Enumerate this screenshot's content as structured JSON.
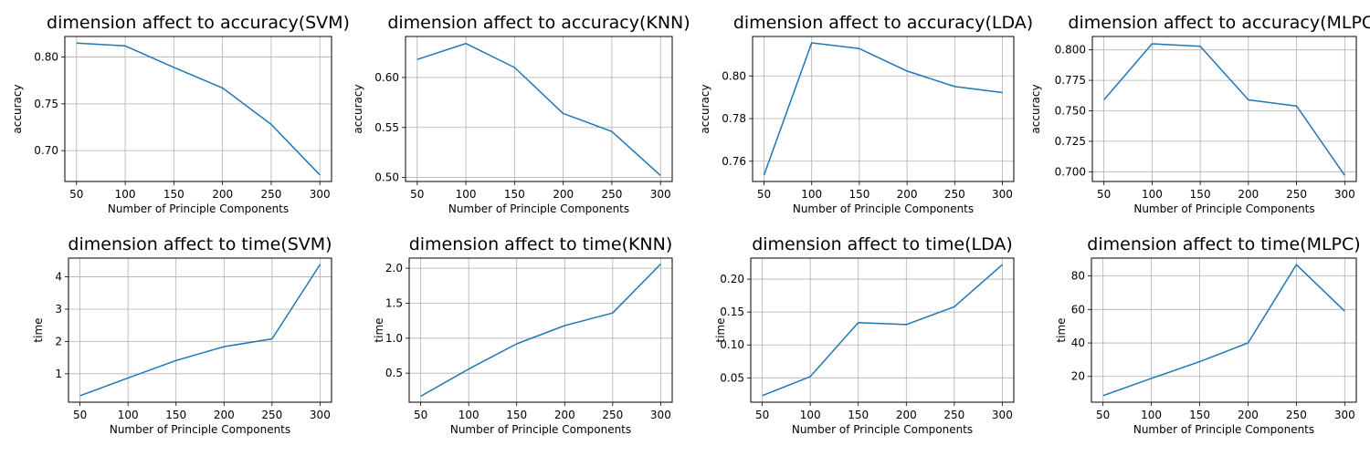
{
  "chart_data": [
    {
      "type": "line",
      "title": "dimension affect to accuracy(SVM)",
      "xlabel": "Number of Principle Components",
      "ylabel": "accuracy",
      "x": [
        50,
        100,
        150,
        200,
        250,
        300
      ],
      "series": [
        {
          "values": [
            0.815,
            0.812,
            0.789,
            0.767,
            0.728,
            0.674
          ]
        }
      ],
      "xlim": [
        38,
        312
      ],
      "ylim": [
        0.667,
        0.822
      ],
      "xticks": [
        50,
        100,
        150,
        200,
        250,
        300
      ],
      "yticks": [
        0.7,
        0.75,
        0.8
      ],
      "ytick_labels": [
        "0.70",
        "0.75",
        "0.80"
      ],
      "grid": true
    },
    {
      "type": "line",
      "title": "dimension affect to accuracy(KNN)",
      "xlabel": "Number of Principle Components",
      "ylabel": "accuracy",
      "x": [
        50,
        100,
        150,
        200,
        250,
        300
      ],
      "series": [
        {
          "values": [
            0.618,
            0.634,
            0.61,
            0.564,
            0.546,
            0.502
          ]
        }
      ],
      "xlim": [
        38,
        312
      ],
      "ylim": [
        0.496,
        0.641
      ],
      "xticks": [
        50,
        100,
        150,
        200,
        250,
        300
      ],
      "yticks": [
        0.5,
        0.55,
        0.6
      ],
      "ytick_labels": [
        "0.50",
        "0.55",
        "0.60"
      ],
      "grid": true
    },
    {
      "type": "line",
      "title": "dimension affect to accuracy(LDA)",
      "xlabel": "Number of Principle Components",
      "ylabel": "accuracy",
      "x": [
        50,
        100,
        150,
        200,
        250,
        300
      ],
      "series": [
        {
          "values": [
            0.7535,
            0.8155,
            0.8128,
            0.8023,
            0.795,
            0.7922
          ]
        }
      ],
      "xlim": [
        38,
        312
      ],
      "ylim": [
        0.7505,
        0.8185
      ],
      "xticks": [
        50,
        100,
        150,
        200,
        250,
        300
      ],
      "yticks": [
        0.76,
        0.78,
        0.8
      ],
      "ytick_labels": [
        "0.76",
        "0.78",
        "0.80"
      ],
      "grid": true
    },
    {
      "type": "line",
      "title": "dimension affect to accuracy(MLPC)",
      "xlabel": "Number of Principle Components",
      "ylabel": "accuracy",
      "x": [
        50,
        100,
        150,
        200,
        250,
        300
      ],
      "series": [
        {
          "values": [
            0.759,
            0.805,
            0.803,
            0.759,
            0.754,
            0.697
          ]
        }
      ],
      "xlim": [
        38,
        312
      ],
      "ylim": [
        0.692,
        0.811
      ],
      "xticks": [
        50,
        100,
        150,
        200,
        250,
        300
      ],
      "yticks": [
        0.7,
        0.725,
        0.75,
        0.775,
        0.8
      ],
      "ytick_labels": [
        "0.700",
        "0.725",
        "0.750",
        "0.775",
        "0.800"
      ],
      "grid": true
    },
    {
      "type": "line",
      "title": "dimension affect to time(SVM)",
      "xlabel": "Number of Principle Components",
      "ylabel": "time",
      "x": [
        50,
        100,
        150,
        200,
        250,
        300
      ],
      "series": [
        {
          "values": [
            0.32,
            0.87,
            1.41,
            1.84,
            2.08,
            4.38
          ]
        }
      ],
      "xlim": [
        38,
        312
      ],
      "ylim": [
        0.12,
        4.58
      ],
      "xticks": [
        50,
        100,
        150,
        200,
        250,
        300
      ],
      "yticks": [
        1,
        2,
        3,
        4
      ],
      "ytick_labels": [
        "1",
        "2",
        "3",
        "4"
      ],
      "grid": true
    },
    {
      "type": "line",
      "title": "dimension affect to time(KNN)",
      "xlabel": "Number of Principle Components",
      "ylabel": "time",
      "x": [
        50,
        100,
        150,
        200,
        250,
        300
      ],
      "series": [
        {
          "values": [
            0.17,
            0.56,
            0.92,
            1.18,
            1.36,
            2.06
          ]
        }
      ],
      "xlim": [
        38,
        312
      ],
      "ylim": [
        0.085,
        2.145
      ],
      "xticks": [
        50,
        100,
        150,
        200,
        250,
        300
      ],
      "yticks": [
        0.5,
        1.0,
        1.5,
        2.0
      ],
      "ytick_labels": [
        "0.5",
        "1.0",
        "1.5",
        "2.0"
      ],
      "grid": true
    },
    {
      "type": "line",
      "title": "dimension affect to time(LDA)",
      "xlabel": "Number of Principle Components",
      "ylabel": "time",
      "x": [
        50,
        100,
        150,
        200,
        250,
        300
      ],
      "series": [
        {
          "values": [
            0.023,
            0.052,
            0.134,
            0.131,
            0.158,
            0.222
          ]
        }
      ],
      "xlim": [
        38,
        312
      ],
      "ylim": [
        0.013,
        0.232
      ],
      "xticks": [
        50,
        100,
        150,
        200,
        250,
        300
      ],
      "yticks": [
        0.05,
        0.1,
        0.15,
        0.2
      ],
      "ytick_labels": [
        "0.05",
        "0.10",
        "0.15",
        "0.20"
      ],
      "grid": true
    },
    {
      "type": "line",
      "title": "dimension affect to time(MLPC)",
      "xlabel": "Number of Principle Components",
      "ylabel": "time",
      "x": [
        50,
        100,
        150,
        200,
        250,
        300
      ],
      "series": [
        {
          "values": [
            8.5,
            18.8,
            28.8,
            40.0,
            86.8,
            59.0
          ]
        }
      ],
      "xlim": [
        38,
        312
      ],
      "ylim": [
        4.6,
        90.7
      ],
      "xticks": [
        50,
        100,
        150,
        200,
        250,
        300
      ],
      "yticks": [
        20,
        40,
        60,
        80
      ],
      "ytick_labels": [
        "20",
        "40",
        "60",
        "80"
      ],
      "grid": true
    }
  ]
}
